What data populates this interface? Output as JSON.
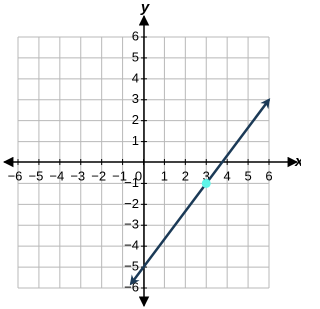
{
  "chart_data": {
    "type": "line",
    "xlabel": "x",
    "ylabel": "y",
    "xlim": [
      -6,
      6
    ],
    "ylim": [
      -6,
      6
    ],
    "xticks": [
      {
        "value": -6,
        "label": "−6"
      },
      {
        "value": -5,
        "label": "−5"
      },
      {
        "value": -4,
        "label": "−4"
      },
      {
        "value": -3,
        "label": "−3"
      },
      {
        "value": -2,
        "label": "−2"
      },
      {
        "value": -1,
        "label": "−1"
      },
      0,
      1,
      2,
      3,
      4,
      5,
      6
    ],
    "yticks": [
      {
        "value": -6,
        "label": "−6"
      },
      {
        "value": -5,
        "label": "−5"
      },
      {
        "value": -4,
        "label": "−4"
      },
      {
        "value": -3,
        "label": "−3"
      },
      {
        "value": -2,
        "label": "−2"
      },
      {
        "value": -1,
        "label": "−1"
      },
      1,
      2,
      3,
      4,
      5,
      6
    ],
    "grid": true,
    "line": {
      "color": "#1b3a57",
      "x": [
        -0.6,
        6
      ],
      "values": [
        -5.8,
        3
      ]
    },
    "point": {
      "color": "#5ff5e8",
      "x": 3,
      "y": -1
    }
  }
}
